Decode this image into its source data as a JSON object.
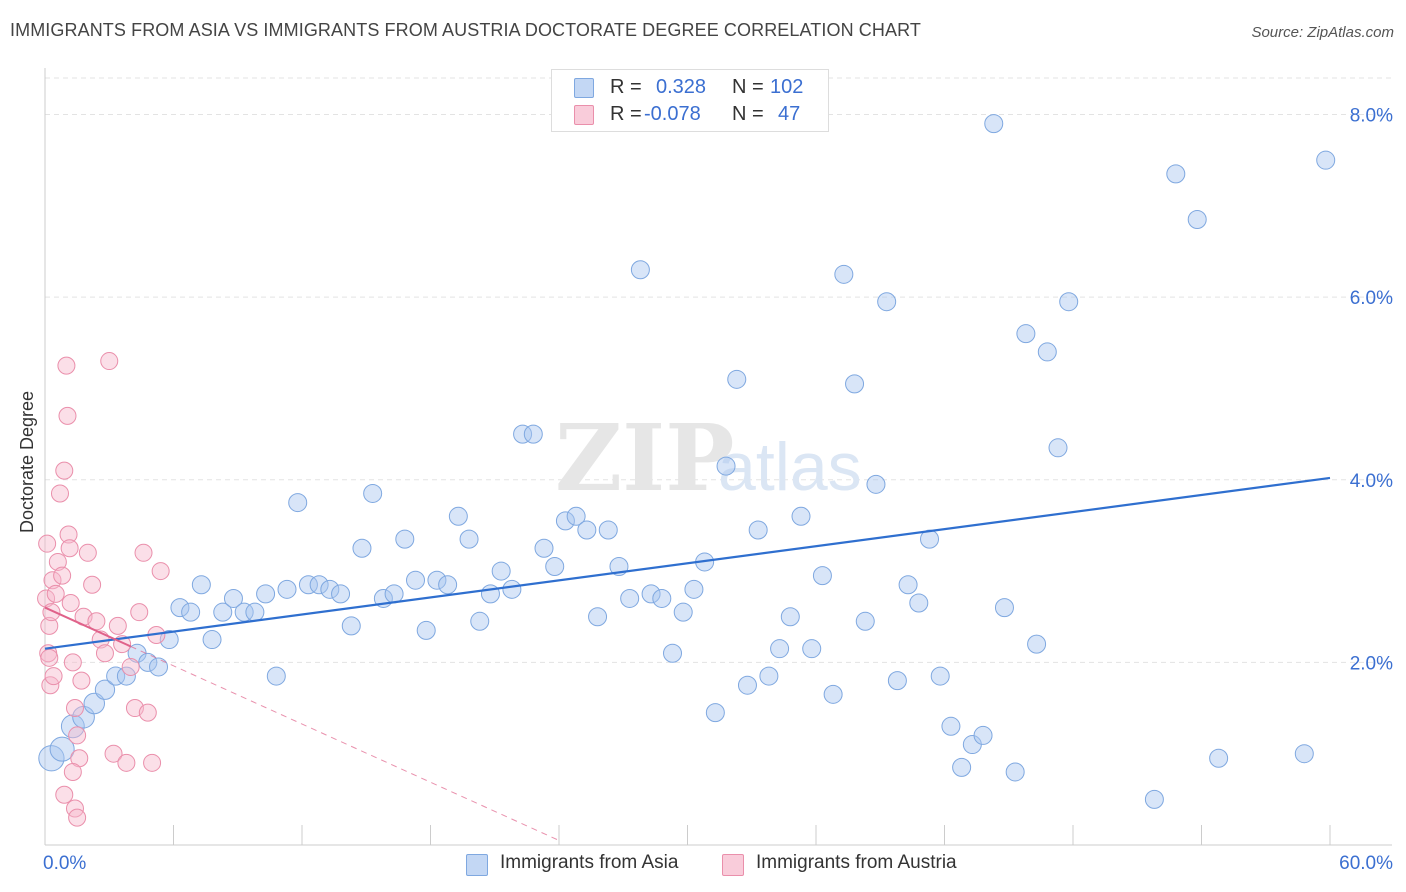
{
  "title": "IMMIGRANTS FROM ASIA VS IMMIGRANTS FROM AUSTRIA DOCTORATE DEGREE CORRELATION CHART",
  "source": "Source: ZipAtlas.com",
  "watermark": {
    "zip": "ZIP",
    "atlas": "atlas"
  },
  "legend": {
    "r_label": "R =",
    "n_label": "N =",
    "asia": {
      "r": "0.328",
      "n": "102"
    },
    "austria": {
      "r": "-0.078",
      "n": "47"
    }
  },
  "colors": {
    "asia_fill": "#a9c6ef",
    "asia_stroke": "#7fa8e0",
    "asia_line": "#2f6fcf",
    "austria_fill": "#f7b8cb",
    "austria_stroke": "#ea8fab",
    "austria_line": "#e0628a",
    "axis_label": "#3b6fd1",
    "grid": "#e3e3e3"
  },
  "chart_data": {
    "type": "scatter",
    "title": "IMMIGRANTS FROM ASIA VS IMMIGRANTS FROM AUSTRIA DOCTORATE DEGREE CORRELATION CHART",
    "xlabel": "",
    "ylabel": "Doctorate Degree",
    "xlim": [
      0,
      60
    ],
    "ylim": [
      0,
      8.4
    ],
    "x_tick_labels": [
      "0.0%",
      "60.0%"
    ],
    "y_ticks": [
      2,
      4,
      6,
      8
    ],
    "y_tick_labels": [
      "2.0%",
      "4.0%",
      "6.0%",
      "8.0%"
    ],
    "grid": true,
    "legend_position": "top-center",
    "series": [
      {
        "name": "Immigrants from Asia",
        "r": 0.328,
        "n": 102,
        "trend": {
          "x": [
            0,
            60
          ],
          "y": [
            2.15,
            4.02
          ],
          "style": "solid"
        },
        "points": [
          [
            0.3,
            0.95
          ],
          [
            0.8,
            1.05
          ],
          [
            1.3,
            1.3
          ],
          [
            1.8,
            1.4
          ],
          [
            2.3,
            1.55
          ],
          [
            2.8,
            1.7
          ],
          [
            3.3,
            1.85
          ],
          [
            3.8,
            1.85
          ],
          [
            4.3,
            2.1
          ],
          [
            4.8,
            2.0
          ],
          [
            5.3,
            1.95
          ],
          [
            5.8,
            2.25
          ],
          [
            6.3,
            2.6
          ],
          [
            6.8,
            2.55
          ],
          [
            7.3,
            2.85
          ],
          [
            7.8,
            2.25
          ],
          [
            8.3,
            2.55
          ],
          [
            8.8,
            2.7
          ],
          [
            9.3,
            2.55
          ],
          [
            9.8,
            2.55
          ],
          [
            10.3,
            2.75
          ],
          [
            10.8,
            1.85
          ],
          [
            11.3,
            2.8
          ],
          [
            11.8,
            3.75
          ],
          [
            12.3,
            2.85
          ],
          [
            12.8,
            2.85
          ],
          [
            13.3,
            2.8
          ],
          [
            13.8,
            2.75
          ],
          [
            14.3,
            2.4
          ],
          [
            14.8,
            3.25
          ],
          [
            15.3,
            3.85
          ],
          [
            15.8,
            2.7
          ],
          [
            16.3,
            2.75
          ],
          [
            16.8,
            3.35
          ],
          [
            17.3,
            2.9
          ],
          [
            17.8,
            2.35
          ],
          [
            18.3,
            2.9
          ],
          [
            18.8,
            2.85
          ],
          [
            19.3,
            3.6
          ],
          [
            19.8,
            3.35
          ],
          [
            20.3,
            2.45
          ],
          [
            20.8,
            2.75
          ],
          [
            21.3,
            3.0
          ],
          [
            21.8,
            2.8
          ],
          [
            22.3,
            4.5
          ],
          [
            22.8,
            4.5
          ],
          [
            23.3,
            3.25
          ],
          [
            23.8,
            3.05
          ],
          [
            24.3,
            3.55
          ],
          [
            24.8,
            3.6
          ],
          [
            25.3,
            3.45
          ],
          [
            25.8,
            2.5
          ],
          [
            26.3,
            3.45
          ],
          [
            26.8,
            3.05
          ],
          [
            27.3,
            2.7
          ],
          [
            27.8,
            6.3
          ],
          [
            28.3,
            2.75
          ],
          [
            28.8,
            2.7
          ],
          [
            29.3,
            2.1
          ],
          [
            29.8,
            2.55
          ],
          [
            30.3,
            2.8
          ],
          [
            30.8,
            3.1
          ],
          [
            31.3,
            1.45
          ],
          [
            31.8,
            4.15
          ],
          [
            32.3,
            5.1
          ],
          [
            32.8,
            1.75
          ],
          [
            33.3,
            3.45
          ],
          [
            33.8,
            1.85
          ],
          [
            34.3,
            2.15
          ],
          [
            34.8,
            2.5
          ],
          [
            35.3,
            3.6
          ],
          [
            35.8,
            2.15
          ],
          [
            36.3,
            2.95
          ],
          [
            36.8,
            1.65
          ],
          [
            37.3,
            6.25
          ],
          [
            37.8,
            5.05
          ],
          [
            38.3,
            2.45
          ],
          [
            38.8,
            3.95
          ],
          [
            39.3,
            5.95
          ],
          [
            39.8,
            1.8
          ],
          [
            40.3,
            2.85
          ],
          [
            40.8,
            2.65
          ],
          [
            41.3,
            3.35
          ],
          [
            41.8,
            1.85
          ],
          [
            42.3,
            1.3
          ],
          [
            42.8,
            0.85
          ],
          [
            43.3,
            1.1
          ],
          [
            43.8,
            1.2
          ],
          [
            44.3,
            7.9
          ],
          [
            44.8,
            2.6
          ],
          [
            45.3,
            0.8
          ],
          [
            45.8,
            5.6
          ],
          [
            46.3,
            2.2
          ],
          [
            46.8,
            5.4
          ],
          [
            47.3,
            4.35
          ],
          [
            47.8,
            5.95
          ],
          [
            51.8,
            0.5
          ],
          [
            52.8,
            7.35
          ],
          [
            53.8,
            6.85
          ],
          [
            54.8,
            0.95
          ],
          [
            58.8,
            1.0
          ],
          [
            59.8,
            7.5
          ]
        ]
      },
      {
        "name": "Immigrants from Austria",
        "r": -0.078,
        "n": 47,
        "trend": {
          "x": [
            0,
            24
          ],
          "y": [
            2.6,
            0.05
          ],
          "style": "solid-then-dashed",
          "solid_until_x": 4.0
        },
        "points": [
          [
            0.05,
            2.7
          ],
          [
            0.1,
            3.3
          ],
          [
            0.15,
            2.1
          ],
          [
            0.2,
            2.4
          ],
          [
            0.25,
            1.75
          ],
          [
            0.3,
            2.55
          ],
          [
            0.35,
            2.9
          ],
          [
            0.4,
            1.85
          ],
          [
            0.5,
            2.75
          ],
          [
            0.6,
            3.1
          ],
          [
            0.7,
            3.85
          ],
          [
            0.8,
            2.95
          ],
          [
            0.9,
            4.1
          ],
          [
            1.0,
            5.25
          ],
          [
            1.05,
            4.7
          ],
          [
            1.1,
            3.4
          ],
          [
            1.15,
            3.25
          ],
          [
            1.2,
            2.65
          ],
          [
            1.3,
            2.0
          ],
          [
            1.4,
            1.5
          ],
          [
            1.5,
            1.2
          ],
          [
            1.6,
            0.95
          ],
          [
            1.7,
            1.8
          ],
          [
            1.8,
            2.5
          ],
          [
            2.0,
            3.2
          ],
          [
            2.2,
            2.85
          ],
          [
            2.4,
            2.45
          ],
          [
            2.6,
            2.25
          ],
          [
            2.8,
            2.1
          ],
          [
            3.0,
            5.3
          ],
          [
            3.2,
            1.0
          ],
          [
            3.4,
            2.4
          ],
          [
            3.6,
            2.2
          ],
          [
            3.8,
            0.9
          ],
          [
            4.0,
            1.95
          ],
          [
            4.2,
            1.5
          ],
          [
            4.4,
            2.55
          ],
          [
            4.6,
            3.2
          ],
          [
            4.8,
            1.45
          ],
          [
            5.0,
            0.9
          ],
          [
            5.2,
            2.3
          ],
          [
            5.4,
            3.0
          ],
          [
            0.9,
            0.55
          ],
          [
            1.3,
            0.8
          ],
          [
            1.4,
            0.4
          ],
          [
            1.5,
            0.3
          ],
          [
            0.2,
            2.05
          ]
        ]
      }
    ]
  },
  "bottom_legend": [
    {
      "label": "Immigrants from Asia"
    },
    {
      "label": "Immigrants from Austria"
    }
  ]
}
